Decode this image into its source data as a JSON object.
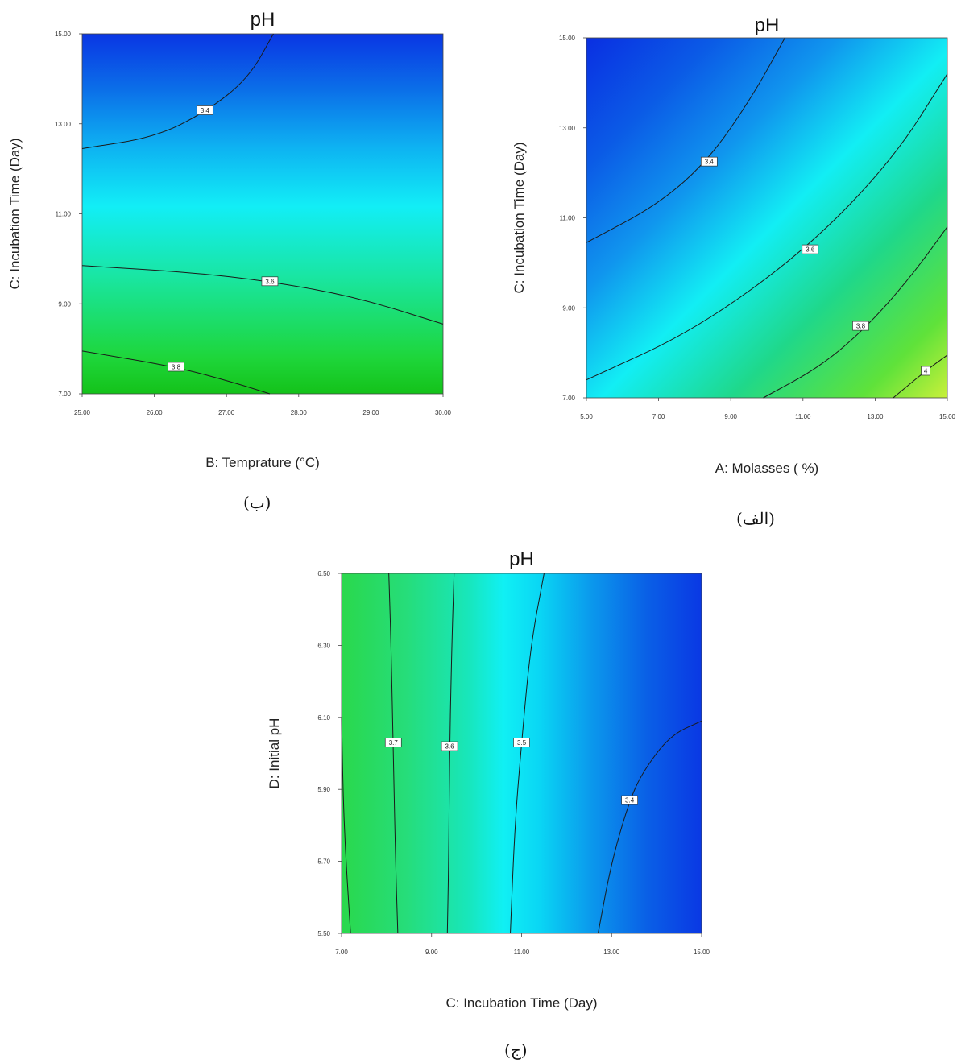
{
  "chart_data": [
    {
      "type": "heatmap",
      "title": "pH",
      "xlabel": "B: Temprature (°C)",
      "ylabel": "C: Incubation Time (Day)",
      "xlim": [
        25,
        30
      ],
      "ylim": [
        7,
        15
      ],
      "x_ticks": [
        "25.00",
        "26.00",
        "27.00",
        "28.00",
        "29.00",
        "30.00"
      ],
      "y_ticks": [
        "7.00",
        "9.00",
        "11.00",
        "13.00",
        "15.00"
      ],
      "contours": [
        {
          "level": "3.4",
          "points": [
            [
              25,
              12.45
            ],
            [
              26,
              12.7
            ],
            [
              26.7,
              13.25
            ],
            [
              27.3,
              14.0
            ],
            [
              27.65,
              15
            ]
          ],
          "label_at": [
            26.7,
            13.3
          ]
        },
        {
          "level": "3.6",
          "points": [
            [
              25,
              9.85
            ],
            [
              26.5,
              9.7
            ],
            [
              27.6,
              9.5
            ],
            [
              28.8,
              9.15
            ],
            [
              30,
              8.55
            ]
          ],
          "label_at": [
            27.6,
            9.5
          ]
        },
        {
          "level": "3.8",
          "points": [
            [
              25,
              7.95
            ],
            [
              26.3,
              7.6
            ],
            [
              27.1,
              7.25
            ],
            [
              27.6,
              7.0
            ]
          ],
          "label_at": [
            26.3,
            7.6
          ]
        }
      ],
      "caption": "(ب)"
    },
    {
      "type": "heatmap",
      "title": "pH",
      "xlabel": "A: Molasses ( %)",
      "ylabel": "C: Incubation Time (Day)",
      "xlim": [
        5,
        15
      ],
      "ylim": [
        7,
        15
      ],
      "x_ticks": [
        "5.00",
        "7.00",
        "9.00",
        "11.00",
        "13.00",
        "15.00"
      ],
      "y_ticks": [
        "7.00",
        "9.00",
        "11.00",
        "13.00",
        "15.00"
      ],
      "contours": [
        {
          "level": "3.4",
          "points": [
            [
              5,
              10.45
            ],
            [
              7,
              11.3
            ],
            [
              8.4,
              12.3
            ],
            [
              9.6,
              13.7
            ],
            [
              10.5,
              15
            ]
          ],
          "label_at": [
            8.4,
            12.25
          ]
        },
        {
          "level": "3.6",
          "points": [
            [
              5,
              7.4
            ],
            [
              8,
              8.5
            ],
            [
              11.1,
              10.3
            ],
            [
              13.5,
              12.3
            ],
            [
              15,
              14.2
            ]
          ],
          "label_at": [
            11.2,
            10.3
          ]
        },
        {
          "level": "3.8",
          "points": [
            [
              9.9,
              7.0
            ],
            [
              11.5,
              7.7
            ],
            [
              12.8,
              8.6
            ],
            [
              14,
              9.7
            ],
            [
              15,
              10.8
            ]
          ],
          "label_at": [
            12.6,
            8.6
          ]
        },
        {
          "level": "4",
          "points": [
            [
              13.5,
              7.0
            ],
            [
              14.4,
              7.6
            ],
            [
              15,
              7.95
            ]
          ],
          "label_at": [
            14.4,
            7.6
          ]
        }
      ],
      "caption": "(الف)"
    },
    {
      "type": "heatmap",
      "title": "pH",
      "xlabel": "C: Incubation Time (Day)",
      "ylabel": "D: Initial pH",
      "xlim": [
        7,
        15
      ],
      "ylim": [
        5.5,
        6.5
      ],
      "x_ticks": [
        "7.00",
        "9.00",
        "11.00",
        "13.00",
        "15.00"
      ],
      "y_ticks": [
        "5.50",
        "5.70",
        "5.90",
        "6.10",
        "6.30",
        "6.50"
      ],
      "contours": [
        {
          "level": "",
          "points": [
            [
              7.0,
              6.1
            ],
            [
              7.05,
              5.8
            ],
            [
              7.2,
              5.5
            ]
          ],
          "label_at": null
        },
        {
          "level": "3.7",
          "points": [
            [
              8.05,
              6.5
            ],
            [
              8.1,
              6.3
            ],
            [
              8.15,
              6.0
            ],
            [
              8.2,
              5.7
            ],
            [
              8.25,
              5.5
            ]
          ],
          "label_at": [
            8.15,
            6.03
          ]
        },
        {
          "level": "3.6",
          "points": [
            [
              9.5,
              6.5
            ],
            [
              9.45,
              6.3
            ],
            [
              9.4,
              6.0
            ],
            [
              9.38,
              5.7
            ],
            [
              9.35,
              5.5
            ]
          ],
          "label_at": [
            9.4,
            6.02
          ]
        },
        {
          "level": "3.5",
          "points": [
            [
              11.5,
              6.5
            ],
            [
              11.2,
              6.3
            ],
            [
              11.0,
              6.03
            ],
            [
              10.85,
              5.8
            ],
            [
              10.75,
              5.5
            ]
          ],
          "label_at": [
            11.0,
            6.03
          ]
        },
        {
          "level": "3.4",
          "points": [
            [
              15,
              6.09
            ],
            [
              14.3,
              6.05
            ],
            [
              13.7,
              5.95
            ],
            [
              13.4,
              5.87
            ],
            [
              13.0,
              5.7
            ],
            [
              12.7,
              5.5
            ]
          ],
          "label_at": [
            13.4,
            5.87
          ]
        }
      ],
      "caption": "(ج)"
    }
  ]
}
